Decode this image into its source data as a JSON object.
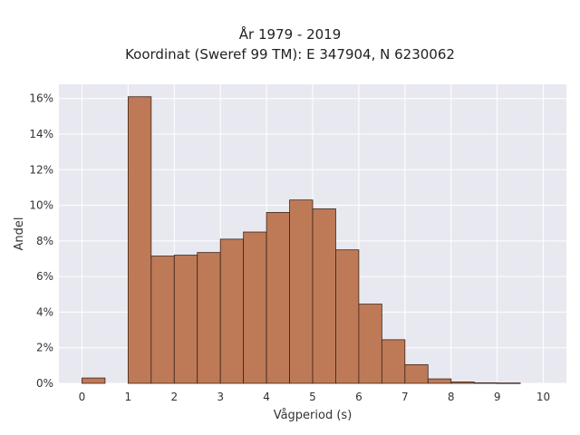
{
  "chart_data": {
    "type": "bar",
    "title": "År 1979 - 2019",
    "subtitle": "Koordinat (Sweref 99 TM): E 347904, N 6230062",
    "xlabel": "Vågperiod (s)",
    "ylabel": "Andel",
    "xlim": [
      -0.5,
      10.5
    ],
    "ylim": [
      0,
      16.8
    ],
    "x_ticks": [
      0,
      1,
      2,
      3,
      4,
      5,
      6,
      7,
      8,
      9,
      10
    ],
    "y_ticks": [
      0,
      2,
      4,
      6,
      8,
      10,
      12,
      14,
      16
    ],
    "y_tick_labels": [
      "0%",
      "2%",
      "4%",
      "6%",
      "8%",
      "10%",
      "12%",
      "14%",
      "16%"
    ],
    "bin_width": 0.5,
    "bins": [
      {
        "x0": 0.0,
        "value": 0.3
      },
      {
        "x0": 0.5,
        "value": 0.0
      },
      {
        "x0": 1.0,
        "value": 16.1
      },
      {
        "x0": 1.5,
        "value": 7.15
      },
      {
        "x0": 2.0,
        "value": 7.2
      },
      {
        "x0": 2.5,
        "value": 7.35
      },
      {
        "x0": 3.0,
        "value": 8.1
      },
      {
        "x0": 3.5,
        "value": 8.5
      },
      {
        "x0": 4.0,
        "value": 9.6
      },
      {
        "x0": 4.5,
        "value": 10.3
      },
      {
        "x0": 5.0,
        "value": 9.8
      },
      {
        "x0": 5.5,
        "value": 7.5
      },
      {
        "x0": 6.0,
        "value": 4.45
      },
      {
        "x0": 6.5,
        "value": 2.45
      },
      {
        "x0": 7.0,
        "value": 1.05
      },
      {
        "x0": 7.5,
        "value": 0.25
      },
      {
        "x0": 8.0,
        "value": 0.08
      },
      {
        "x0": 8.5,
        "value": 0.03
      },
      {
        "x0": 9.0,
        "value": 0.02
      }
    ],
    "grid": true,
    "bar_color": "#be7a57",
    "bar_edge_color": "#3b2418",
    "plot_background": "#e8e8f0",
    "grid_color": "#ffffff"
  }
}
